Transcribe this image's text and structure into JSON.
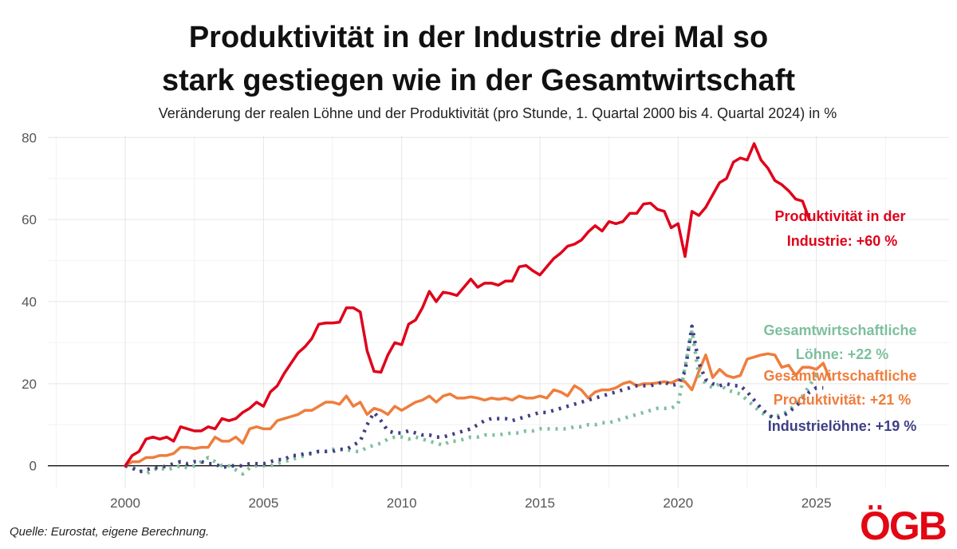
{
  "header": {
    "title_line1": "Produktivität in der Industrie drei Mal so",
    "title_line2": "stark gestiegen wie in der Gesamtwirtschaft",
    "subtitle": "Veränderung der realen Löhne und der Produktivität (pro Stunde, 1. Quartal 2000 bis 4. Quartal 2024) in %"
  },
  "footer": {
    "source": "Quelle: Eurostat, eigene Berechnung.",
    "logo": "ÖGB"
  },
  "colors": {
    "industry_productivity": "#e0001a",
    "total_wages": "#7dbf9e",
    "total_productivity": "#ef7d3c",
    "industry_wages": "#3f3f86"
  },
  "chart_data": {
    "type": "line",
    "title": "Produktivität in der Industrie drei Mal so stark gestiegen wie in der Gesamtwirtschaft",
    "xlabel": "",
    "ylabel": "",
    "xlim": [
      1997.2,
      2029.8
    ],
    "ylim": [
      -5.5,
      82
    ],
    "x_ticks": [
      2000,
      2005,
      2010,
      2015,
      2020,
      2025
    ],
    "y_ticks": [
      0,
      20,
      40,
      60,
      80
    ],
    "x_minor_ticks": [
      1997.5,
      2002.5,
      2007.5,
      2012.5,
      2017.5,
      2022.5,
      2027.5
    ],
    "grid": true,
    "x_start": 2000.0,
    "x_step": 0.25,
    "series": [
      {
        "name": "Produktivität in der Industrie",
        "label_lines": [
          "Produktivität in der",
          "Industrie: +60 %"
        ],
        "style": "solid",
        "color": "#e0001a",
        "values": [
          0,
          2.5,
          3.5,
          6.5,
          7,
          6.5,
          7,
          6,
          9.5,
          9,
          8.5,
          8.5,
          9.5,
          9,
          11.5,
          11,
          11.5,
          13,
          14,
          15.5,
          14.5,
          18,
          19.5,
          22.5,
          25,
          27.5,
          29,
          31,
          34.5,
          34.8,
          34.8,
          35,
          38.5,
          38.5,
          37.5,
          28,
          23,
          22.8,
          27,
          30,
          29.5,
          34.5,
          35.5,
          38.5,
          42.5,
          40,
          42.3,
          42,
          41.5,
          43.5,
          45.5,
          43.5,
          44.5,
          44.5,
          44,
          45,
          45,
          48.5,
          48.8,
          47.5,
          46.5,
          48.5,
          50.5,
          51.8,
          53.5,
          54,
          55,
          57,
          58.5,
          57.2,
          59.5,
          59,
          59.5,
          61.5,
          61.5,
          63.8,
          64,
          62.5,
          62,
          58,
          59,
          51,
          62,
          61,
          63,
          66,
          69,
          70,
          74,
          75,
          74.5,
          78.5,
          74.5,
          72.5,
          69.5,
          68.5,
          67,
          65,
          64.5,
          60
        ]
      },
      {
        "name": "Gesamtwirtschaftliche Produktivität",
        "label_lines": [
          "Gesamtwirtschaftliche",
          "Produktivität: +21 %"
        ],
        "style": "solid",
        "color": "#ef7d3c",
        "values": [
          0,
          1,
          1,
          2,
          2,
          2.5,
          2.5,
          3,
          4.5,
          4.5,
          4.2,
          4.5,
          4.5,
          7,
          6,
          6,
          7,
          5.5,
          9,
          9.5,
          9,
          9,
          11,
          11.5,
          12,
          12.5,
          13.5,
          13.5,
          14.5,
          15.5,
          15.5,
          15,
          17,
          14.5,
          15.5,
          12.5,
          14,
          13.5,
          12.5,
          14.5,
          13.5,
          14.5,
          15.5,
          16,
          17,
          15.5,
          17,
          17.5,
          16.5,
          16.5,
          16.8,
          16.5,
          16,
          16.5,
          16.2,
          16.5,
          16,
          17,
          16.5,
          16.5,
          17,
          16.5,
          18.5,
          18,
          17,
          19.5,
          18.5,
          16.5,
          18,
          18.5,
          18.5,
          19,
          20,
          20.5,
          19.5,
          20,
          20,
          20.2,
          20.5,
          20.2,
          21,
          20.5,
          18.5,
          23,
          27,
          21.5,
          23.5,
          22,
          21.5,
          22,
          26,
          26.5,
          27,
          27.3,
          27,
          24,
          24.5,
          22,
          24,
          24,
          23.5,
          25,
          21
        ]
      },
      {
        "name": "Gesamtwirtschaftliche Löhne",
        "label_lines": [
          "Gesamtwirtschaftliche",
          "Löhne: +22 %"
        ],
        "style": "dotted",
        "color": "#7dbf9e",
        "values": [
          0,
          -0.5,
          -1,
          -2,
          -1,
          -0.5,
          -1,
          -0.5,
          0,
          -0.5,
          0,
          1,
          2,
          1,
          0,
          0,
          -1,
          -2,
          -0.5,
          0,
          0,
          0,
          0.5,
          1,
          1.5,
          2,
          2.5,
          3,
          3.5,
          3.5,
          4,
          4,
          4,
          3.5,
          3.5,
          4.5,
          5,
          5.5,
          6.5,
          7,
          7,
          6.5,
          7,
          6.5,
          6,
          5.5,
          5,
          6,
          6,
          6.5,
          7,
          7,
          7.5,
          7.5,
          7.5,
          7.8,
          8,
          8,
          8.5,
          8.5,
          9,
          9,
          9,
          9,
          9,
          9.5,
          9.5,
          10,
          10,
          10.5,
          10.5,
          11,
          11.5,
          12,
          12.5,
          13,
          13.5,
          14,
          14,
          14,
          15,
          24,
          33,
          22,
          20,
          19,
          20,
          18.5,
          18,
          17.5,
          16,
          14.5,
          13,
          12,
          12,
          12.5,
          13.5,
          15,
          17,
          19.5,
          22,
          22
        ]
      },
      {
        "name": "Industrielöhne",
        "label_lines": [
          "Industrielöhne: +19 %"
        ],
        "style": "dotted",
        "color": "#3f3f86",
        "values": [
          0,
          -0.5,
          -1.5,
          -1,
          -0.5,
          -0.5,
          0,
          0.5,
          1,
          0.5,
          1,
          1,
          0.5,
          0.5,
          -0.5,
          0,
          0,
          0,
          0.5,
          0.5,
          0.5,
          1,
          1.5,
          1.5,
          2.5,
          2.5,
          3,
          3,
          3.5,
          3.5,
          3.5,
          4,
          4,
          5,
          6,
          10,
          13,
          11,
          8.5,
          8,
          8,
          8.5,
          8,
          7.5,
          7.5,
          7,
          7,
          7.5,
          8,
          8.5,
          9,
          10,
          11,
          11.5,
          11.5,
          11.5,
          11,
          11.5,
          12,
          12.5,
          13,
          13,
          13.5,
          14,
          14.5,
          15,
          15.5,
          16,
          16.5,
          17,
          17.5,
          18,
          18.5,
          19,
          19.5,
          19.5,
          19.5,
          20,
          20.5,
          19.5,
          20,
          23,
          34,
          25,
          21,
          20,
          19.5,
          20,
          19.5,
          19.5,
          18,
          16,
          14,
          12.5,
          11.5,
          12,
          13,
          14.5,
          16,
          18,
          19,
          19
        ]
      }
    ],
    "annotations": [
      {
        "series": "Produktivität in der Industrie",
        "lines": [
          "Produktivität in der",
          "Industrie: +60 %"
        ]
      },
      {
        "series": "Gesamtwirtschaftliche Löhne",
        "lines": [
          "Gesamtwirtschaftliche",
          "Löhne: +22 %"
        ]
      },
      {
        "series": "Gesamtwirtschaftliche Produktivität",
        "lines": [
          "Gesamtwirtschaftliche",
          "Produktivität: +21 %"
        ]
      },
      {
        "series": "Industrielöhne",
        "lines": [
          "Industrielöhne: +19 %"
        ]
      }
    ]
  }
}
